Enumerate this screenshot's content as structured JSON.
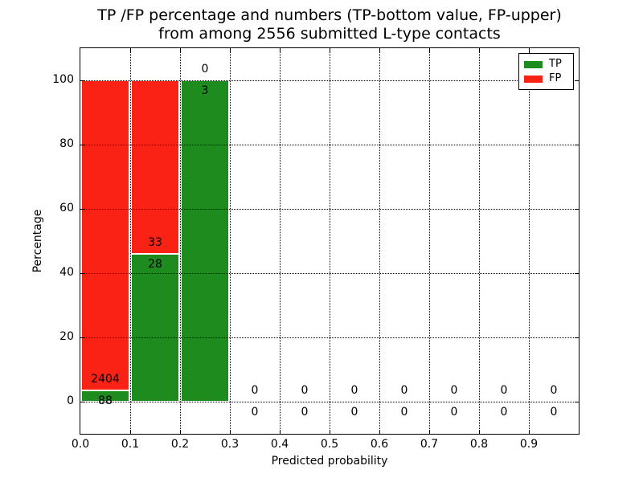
{
  "title": {
    "line1": "TP /FP percentage and numbers (TP-bottom value, FP-upper)",
    "line2": "from among 2556 submitted L-type contacts"
  },
  "axes": {
    "xlabel": "Predicted probability",
    "ylabel": "Percentage",
    "x_tick_labels": [
      "0.0",
      "0.1",
      "0.2",
      "0.3",
      "0.4",
      "0.5",
      "0.6",
      "0.7",
      "0.8",
      "0.9"
    ],
    "x_tick_values": [
      0.0,
      0.1,
      0.2,
      0.3,
      0.4,
      0.5,
      0.6,
      0.7,
      0.8,
      0.9
    ],
    "y_tick_labels": [
      "0",
      "20",
      "40",
      "60",
      "80",
      "100"
    ],
    "y_tick_values": [
      0,
      20,
      40,
      60,
      80,
      100
    ],
    "xlim": [
      0.0,
      1.0
    ],
    "ylim": [
      -10,
      110
    ],
    "grid": true
  },
  "legend": {
    "position": "upper right",
    "items": [
      {
        "label": "TP",
        "color": "#1e8b1e"
      },
      {
        "label": "FP",
        "color": "#fa2115"
      }
    ]
  },
  "colors": {
    "tp": "#1e8b1e",
    "fp": "#fa2115",
    "bar_edge": "#ffffff",
    "text": "#000000",
    "background": "#ffffff"
  },
  "chart_data": {
    "type": "bar",
    "stacked": true,
    "total_contacts": 2556,
    "title": "TP /FP percentage and numbers (TP-bottom value, FP-upper) from among 2556 submitted L-type contacts",
    "xlabel": "Predicted probability",
    "ylabel": "Percentage",
    "bin_width": 0.1,
    "series_names": [
      "TP",
      "FP"
    ],
    "bins": [
      {
        "range": [
          0.0,
          0.1
        ],
        "tp_count": 88,
        "fp_count": 2404,
        "tp_pct": 3.53,
        "fp_pct": 96.47
      },
      {
        "range": [
          0.1,
          0.2
        ],
        "tp_count": 28,
        "fp_count": 33,
        "tp_pct": 45.9,
        "fp_pct": 54.1
      },
      {
        "range": [
          0.2,
          0.3
        ],
        "tp_count": 3,
        "fp_count": 0,
        "tp_pct": 100.0,
        "fp_pct": 0.0
      },
      {
        "range": [
          0.3,
          0.4
        ],
        "tp_count": 0,
        "fp_count": 0,
        "tp_pct": 0.0,
        "fp_pct": 0.0
      },
      {
        "range": [
          0.4,
          0.5
        ],
        "tp_count": 0,
        "fp_count": 0,
        "tp_pct": 0.0,
        "fp_pct": 0.0
      },
      {
        "range": [
          0.5,
          0.6
        ],
        "tp_count": 0,
        "fp_count": 0,
        "tp_pct": 0.0,
        "fp_pct": 0.0
      },
      {
        "range": [
          0.6,
          0.7
        ],
        "tp_count": 0,
        "fp_count": 0,
        "tp_pct": 0.0,
        "fp_pct": 0.0
      },
      {
        "range": [
          0.7,
          0.8
        ],
        "tp_count": 0,
        "fp_count": 0,
        "tp_pct": 0.0,
        "fp_pct": 0.0
      },
      {
        "range": [
          0.8,
          0.9
        ],
        "tp_count": 0,
        "fp_count": 0,
        "tp_pct": 0.0,
        "fp_pct": 0.0
      },
      {
        "range": [
          0.9,
          1.0
        ],
        "tp_count": 0,
        "fp_count": 0,
        "tp_pct": 0.0,
        "fp_pct": 0.0
      }
    ]
  }
}
